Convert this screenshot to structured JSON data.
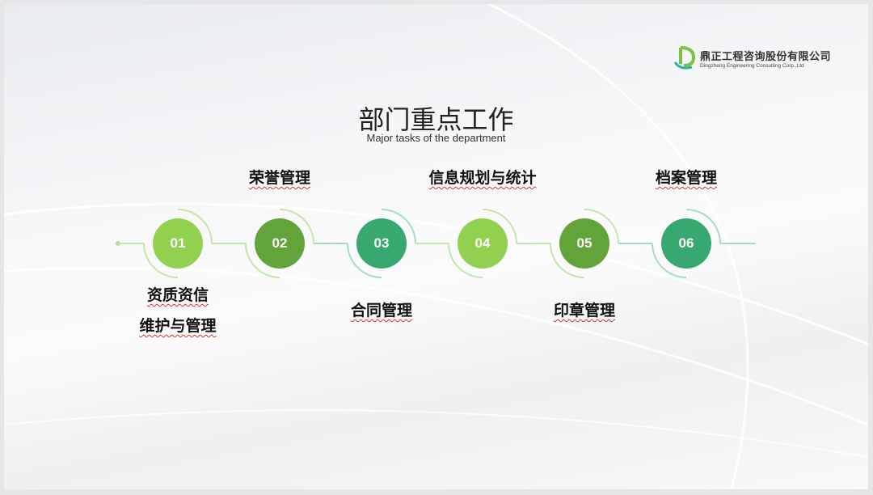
{
  "logo": {
    "name_cn": "鼎正工程咨询股份有限公司",
    "name_en": "Dingzheng Engineering Consulting Corp.,Ltd"
  },
  "title": "部门重点工作",
  "subtitle": "Major tasks of the department",
  "steps": [
    {
      "number": "01",
      "label_lines": [
        "资质资信",
        "维护与管理"
      ],
      "position": "below",
      "color": "#92d050"
    },
    {
      "number": "02",
      "label_lines": [
        "荣誉管理"
      ],
      "position": "above",
      "color": "#63a43a"
    },
    {
      "number": "03",
      "label_lines": [
        "合同管理"
      ],
      "position": "below",
      "color": "#37a86f"
    },
    {
      "number": "04",
      "label_lines": [
        "信息规划与统计"
      ],
      "position": "above",
      "color": "#92d050"
    },
    {
      "number": "05",
      "label_lines": [
        "印章管理"
      ],
      "position": "below",
      "color": "#63a43a"
    },
    {
      "number": "06",
      "label_lines": [
        "档案管理"
      ],
      "position": "above",
      "color": "#37a86f"
    }
  ]
}
